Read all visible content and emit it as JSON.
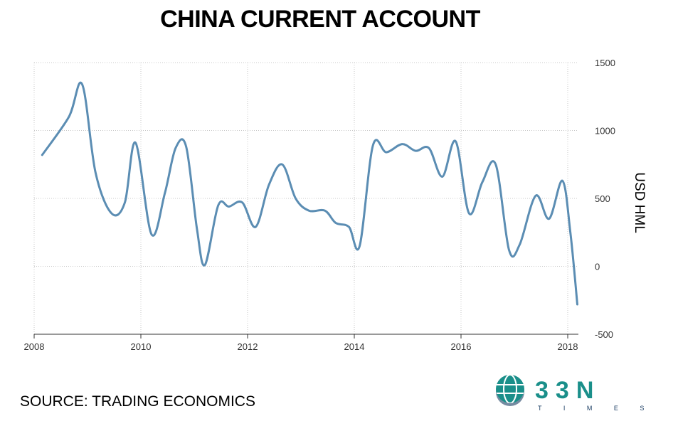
{
  "header": {
    "title": "CHINA CURRENT ACCOUNT"
  },
  "footer": {
    "source": "SOURCE: TRADING ECONOMICS"
  },
  "logo": {
    "wordmark": "33N",
    "subtext": "T I M E S"
  },
  "colors": {
    "line": "#5b8db3",
    "grid": "#c8c8c8",
    "axis": "#333333",
    "logo_teal": "#1a8f8a",
    "logo_navy": "#1b3d63"
  },
  "chart_data": {
    "type": "line",
    "title": "CHINA CURRENT ACCOUNT",
    "ylabel": "USD HML",
    "xlabel": "",
    "xlim": [
      2008,
      2018.2
    ],
    "ylim": [
      -500,
      1500
    ],
    "x_ticks": [
      "2008",
      "2010",
      "2012",
      "2014",
      "2016",
      "2018"
    ],
    "y_ticks": [
      "1500",
      "1000",
      "500",
      "0",
      "-500"
    ],
    "grid": true,
    "y_axis_position": "right",
    "series": [
      {
        "name": "",
        "x": [
          2008.15,
          2008.65,
          2008.9,
          2009.15,
          2009.45,
          2009.7,
          2009.9,
          2010.2,
          2010.45,
          2010.65,
          2010.85,
          2011.05,
          2011.2,
          2011.45,
          2011.65,
          2011.9,
          2012.15,
          2012.4,
          2012.65,
          2012.9,
          2013.15,
          2013.45,
          2013.65,
          2013.9,
          2014.1,
          2014.35,
          2014.6,
          2014.9,
          2015.15,
          2015.4,
          2015.65,
          2015.9,
          2016.15,
          2016.4,
          2016.65,
          2016.9,
          2017.1,
          2017.4,
          2017.65,
          2017.9,
          2018.05,
          2018.18
        ],
        "values": [
          820,
          1100,
          1340,
          690,
          390,
          470,
          910,
          235,
          540,
          870,
          880,
          280,
          10,
          450,
          440,
          470,
          290,
          600,
          750,
          500,
          410,
          410,
          320,
          290,
          150,
          890,
          840,
          900,
          850,
          870,
          660,
          920,
          390,
          620,
          750,
          120,
          160,
          520,
          350,
          630,
          250,
          -280
        ]
      }
    ]
  }
}
